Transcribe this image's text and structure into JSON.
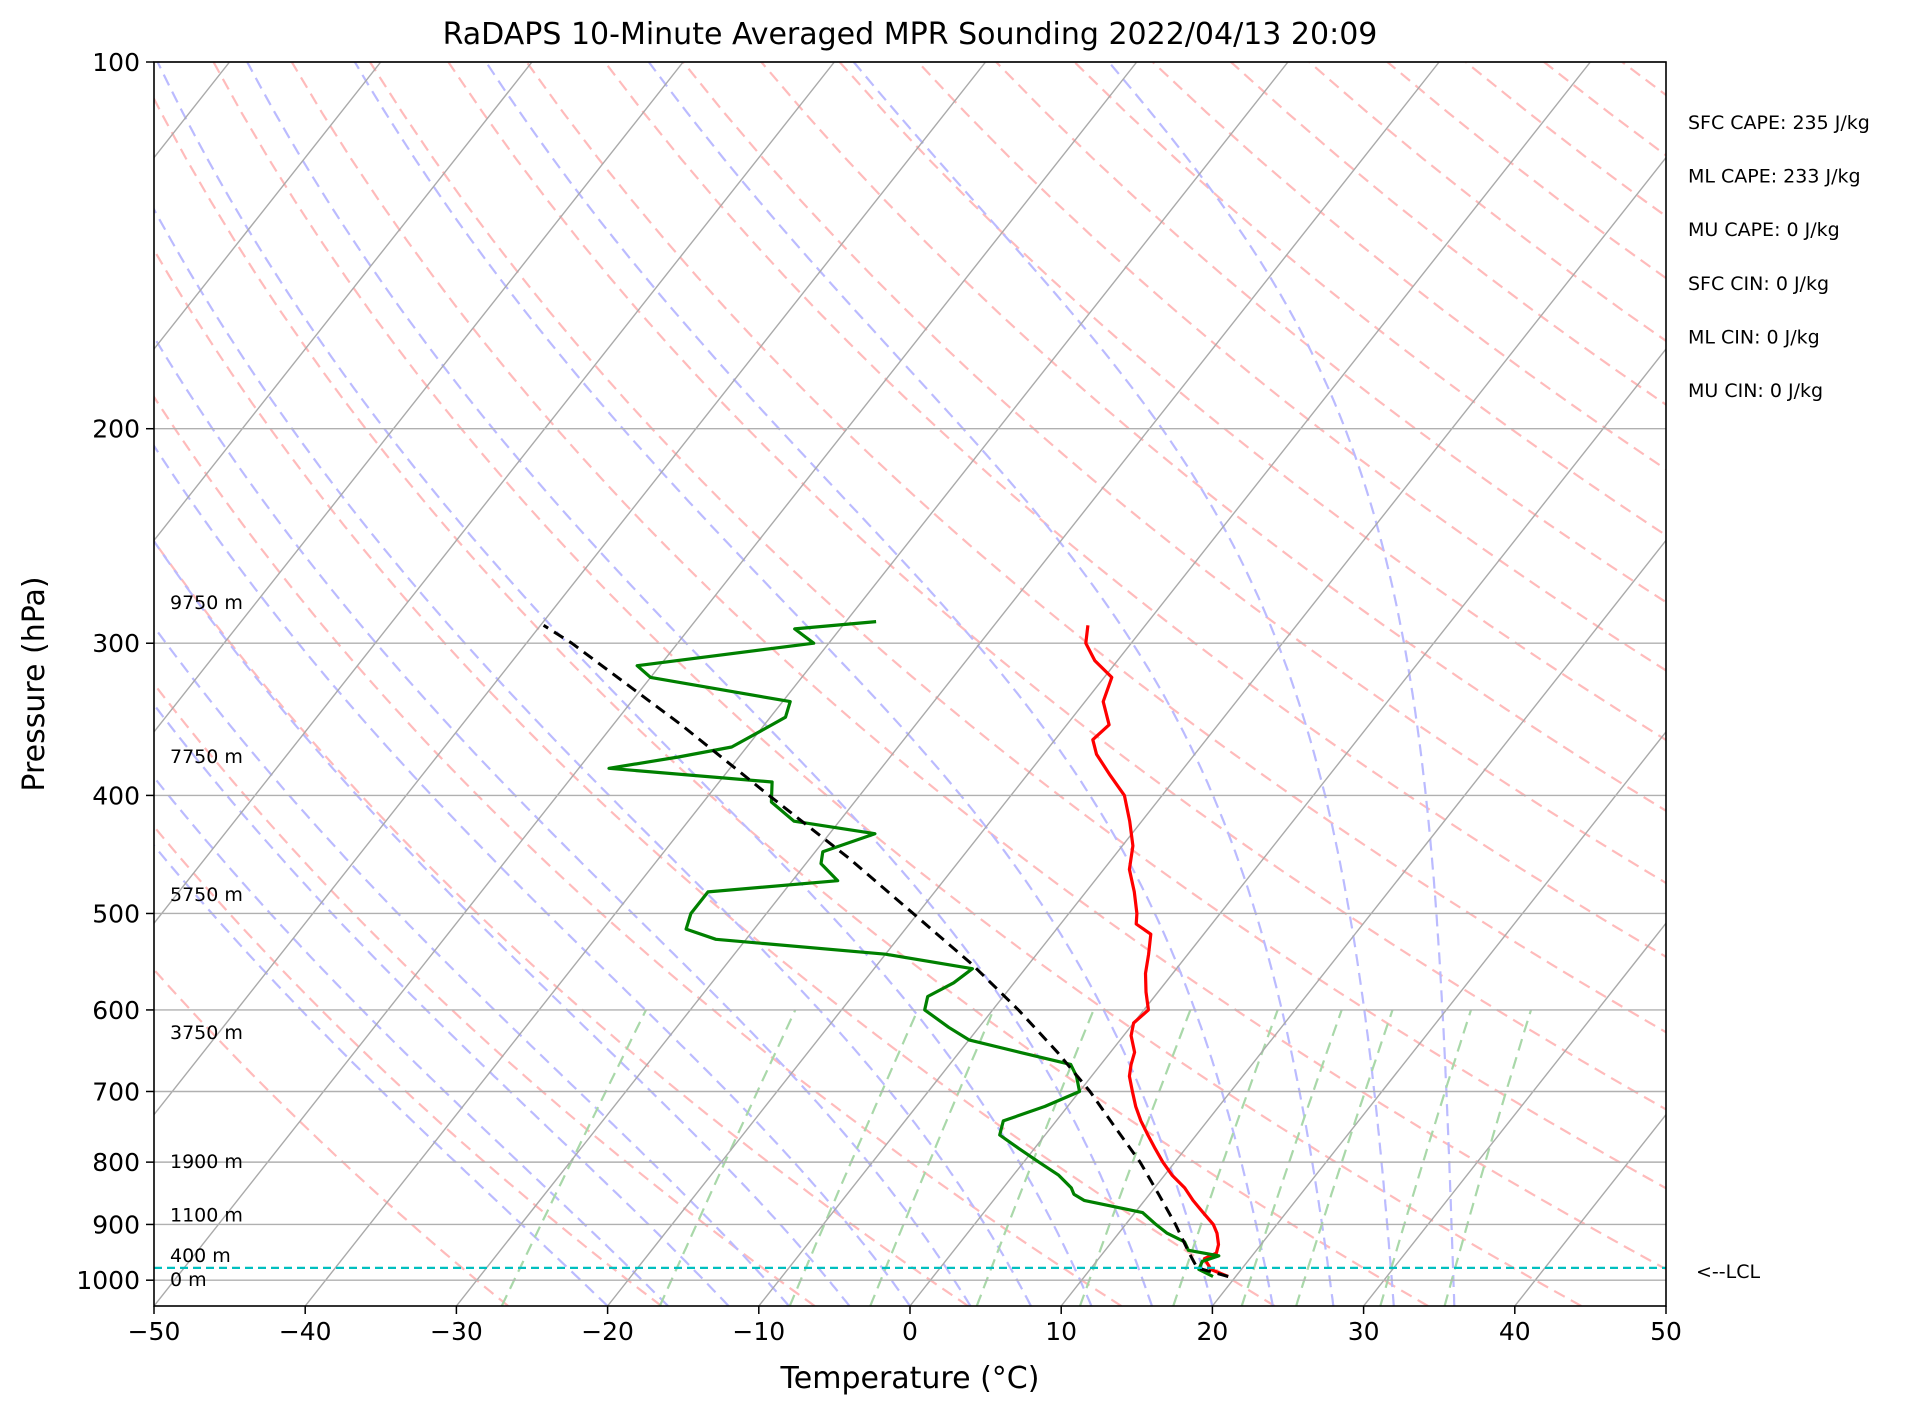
{
  "chart_data": {
    "type": "line",
    "title": "RaDAPS 10-Minute Averaged MPR Sounding 2022/04/13 20:09",
    "xlabel": "Temperature (°C)",
    "ylabel": "Pressure (hPa)",
    "xlim": [
      -50,
      50
    ],
    "ylim": [
      1050,
      100
    ],
    "y_scale": "log",
    "skew": true,
    "grid": true,
    "x_ticks": [
      -50,
      -40,
      -30,
      -20,
      -10,
      0,
      10,
      20,
      30,
      40,
      50
    ],
    "x_tick_labels": [
      "−50",
      "−40",
      "−30",
      "−20",
      "−10",
      "0",
      "10",
      "20",
      "30",
      "40",
      "50"
    ],
    "y_ticks": [
      1000,
      900,
      800,
      700,
      600,
      500,
      400,
      300,
      200,
      100
    ],
    "y_tick_labels": [
      "1000",
      "900",
      "800",
      "700",
      "600",
      "500",
      "400",
      "300",
      "200",
      "100"
    ],
    "series": [
      {
        "role": "temperature",
        "color": "#ff0000",
        "points": [
          [
            993,
            19.5
          ],
          [
            980,
            18.0
          ],
          [
            960,
            17.0
          ],
          [
            950,
            17.5
          ],
          [
            935,
            17.2
          ],
          [
            915,
            16.5
          ],
          [
            900,
            15.8
          ],
          [
            880,
            14.5
          ],
          [
            860,
            13.2
          ],
          [
            840,
            12.0
          ],
          [
            820,
            10.5
          ],
          [
            800,
            9.2
          ],
          [
            780,
            8.0
          ],
          [
            760,
            6.8
          ],
          [
            740,
            5.6
          ],
          [
            720,
            4.5
          ],
          [
            700,
            3.5
          ],
          [
            680,
            2.5
          ],
          [
            665,
            2.0
          ],
          [
            650,
            1.6
          ],
          [
            630,
            0.5
          ],
          [
            615,
            0.0
          ],
          [
            600,
            0.3
          ],
          [
            580,
            -0.8
          ],
          [
            560,
            -1.8
          ],
          [
            540,
            -2.6
          ],
          [
            520,
            -3.5
          ],
          [
            510,
            -5.0
          ],
          [
            500,
            -5.5
          ],
          [
            480,
            -6.8
          ],
          [
            460,
            -8.3
          ],
          [
            440,
            -9.3
          ],
          [
            420,
            -10.8
          ],
          [
            400,
            -12.5
          ],
          [
            385,
            -14.5
          ],
          [
            370,
            -16.5
          ],
          [
            360,
            -17.5
          ],
          [
            350,
            -17.2
          ],
          [
            335,
            -18.8
          ],
          [
            320,
            -19.5
          ],
          [
            310,
            -21.5
          ],
          [
            300,
            -23.0
          ],
          [
            290,
            -23.8
          ]
        ]
      },
      {
        "role": "dewpoint",
        "color": "#008000",
        "points": [
          [
            993,
            18.5
          ],
          [
            980,
            17.2
          ],
          [
            965,
            17.0
          ],
          [
            955,
            17.8
          ],
          [
            945,
            15.5
          ],
          [
            930,
            14.8
          ],
          [
            915,
            13.2
          ],
          [
            900,
            12.0
          ],
          [
            880,
            10.5
          ],
          [
            860,
            6.0
          ],
          [
            850,
            5.0
          ],
          [
            840,
            4.5
          ],
          [
            820,
            3.0
          ],
          [
            800,
            1.0
          ],
          [
            780,
            -1.0
          ],
          [
            760,
            -3.0
          ],
          [
            740,
            -3.5
          ],
          [
            720,
            -1.5
          ],
          [
            700,
            0.0
          ],
          [
            680,
            -1.0
          ],
          [
            665,
            -2.0
          ],
          [
            650,
            -6.0
          ],
          [
            635,
            -10.0
          ],
          [
            620,
            -12.0
          ],
          [
            600,
            -14.5
          ],
          [
            585,
            -15.0
          ],
          [
            570,
            -14.0
          ],
          [
            555,
            -13.5
          ],
          [
            540,
            -20.0
          ],
          [
            525,
            -32.0
          ],
          [
            515,
            -34.5
          ],
          [
            500,
            -35.0
          ],
          [
            480,
            -35.0
          ],
          [
            470,
            -27.0
          ],
          [
            455,
            -29.0
          ],
          [
            445,
            -29.5
          ],
          [
            430,
            -27.0
          ],
          [
            420,
            -33.0
          ],
          [
            405,
            -35.5
          ],
          [
            390,
            -36.5
          ],
          [
            380,
            -48.0
          ],
          [
            372,
            -44.0
          ],
          [
            365,
            -41.0
          ],
          [
            355,
            -40.0
          ],
          [
            345,
            -39.0
          ],
          [
            335,
            -39.5
          ],
          [
            320,
            -50.0
          ],
          [
            313,
            -51.5
          ],
          [
            300,
            -41.0
          ],
          [
            292,
            -43.0
          ],
          [
            288,
            -38.0
          ]
        ]
      },
      {
        "role": "parcel",
        "color": "#000000",
        "dashed": true,
        "points": [
          [
            993,
            19.5
          ],
          [
            977,
            17.0
          ],
          [
            950,
            15.7
          ],
          [
            900,
            13.3
          ],
          [
            850,
            10.6
          ],
          [
            800,
            7.7
          ],
          [
            750,
            4.3
          ],
          [
            700,
            0.7
          ],
          [
            650,
            -3.5
          ],
          [
            600,
            -8.3
          ],
          [
            550,
            -13.8
          ],
          [
            500,
            -20.3
          ],
          [
            450,
            -27.5
          ],
          [
            400,
            -36.0
          ],
          [
            350,
            -45.5
          ],
          [
            300,
            -57.0
          ],
          [
            290,
            -59.8
          ]
        ]
      }
    ],
    "lcl": {
      "pressure": 977,
      "label": "<--LCL",
      "color": "#00bfbf"
    },
    "height_labels": [
      {
        "pressure": 1000,
        "text": "0 m"
      },
      {
        "pressure": 955,
        "text": "400 m"
      },
      {
        "pressure": 885,
        "text": "1100 m"
      },
      {
        "pressure": 800,
        "text": "1900 m"
      },
      {
        "pressure": 627,
        "text": "3750 m"
      },
      {
        "pressure": 483,
        "text": "5750 m"
      },
      {
        "pressure": 372,
        "text": "7750 m"
      },
      {
        "pressure": 278,
        "text": "9750 m"
      }
    ],
    "stats": [
      "SFC CAPE: 235 J/kg",
      "ML CAPE: 233 J/kg",
      "MU CAPE: 0 J/kg",
      "SFC CIN: 0 J/kg",
      "ML CIN: 0 J/kg",
      "MU CIN: 0 J/kg"
    ],
    "background_lines": {
      "isotherm_color": "#aaaaaa",
      "dry_adiabat_color": "#ffbbbb",
      "moist_adiabat_color": "#bbbbff",
      "mixing_ratio_color": "#a9d8a9"
    }
  }
}
